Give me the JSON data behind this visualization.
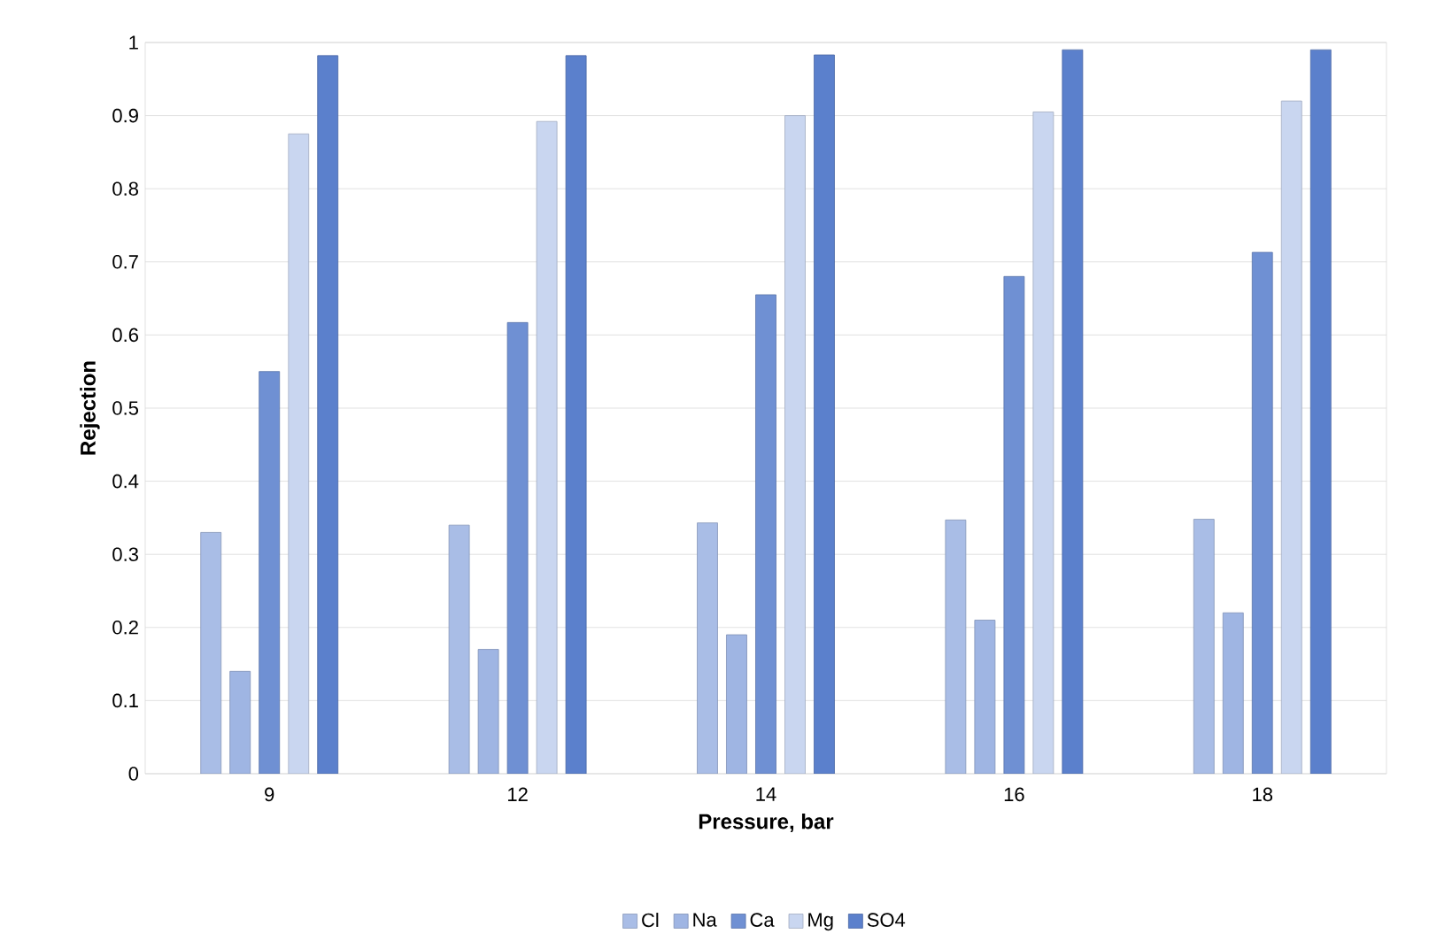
{
  "chart_data": {
    "type": "bar",
    "xlabel": "Pressure, bar",
    "ylabel": "Rejection",
    "categories": [
      "9",
      "12",
      "14",
      "16",
      "18"
    ],
    "series": [
      {
        "name": "Cl",
        "color": "#a9bde6",
        "values": [
          0.33,
          0.34,
          0.343,
          0.347,
          0.348
        ]
      },
      {
        "name": "Na",
        "color": "#9fb5e3",
        "values": [
          0.14,
          0.17,
          0.19,
          0.21,
          0.22
        ]
      },
      {
        "name": "Ca",
        "color": "#6f90d3",
        "values": [
          0.55,
          0.617,
          0.655,
          0.68,
          0.713
        ]
      },
      {
        "name": "Mg",
        "color": "#c9d6f0",
        "values": [
          0.875,
          0.892,
          0.9,
          0.905,
          0.92
        ]
      },
      {
        "name": "SO4",
        "color": "#5b80cc",
        "values": [
          0.982,
          0.982,
          0.983,
          0.99,
          0.99
        ]
      }
    ],
    "ylim": [
      0,
      1
    ],
    "yticks": [
      0,
      0.1,
      0.2,
      0.3,
      0.4,
      0.5,
      0.6,
      0.7,
      0.8,
      0.9,
      1
    ],
    "grid": "y",
    "legend": "bottom"
  }
}
